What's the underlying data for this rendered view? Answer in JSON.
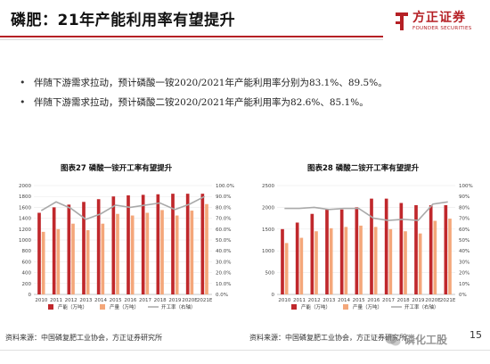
{
  "header": {
    "title": "磷肥：21年产能利用率有望提升",
    "logo_text": "方正证券",
    "logo_sub": "FOUNDER SECURITIES"
  },
  "bullets": [
    "伴随下游需求拉动，预计磷酸一铵2020/2021年产能利用率分别为83.1%、89.5%。",
    "伴随下游需求拉动，预计磷酸二铵2020/2021年产能利用率为82.6%、85.1%。"
  ],
  "colors": {
    "capacity": "#c0282c",
    "output": "#f4a77a",
    "rate": "#a9a9a9",
    "accent": "#b52025"
  },
  "chart_data": [
    {
      "type": "bar",
      "title": "图表27  磷酸一铵开工率有望提升",
      "categories": [
        "2010",
        "2011",
        "2012",
        "2013",
        "2014",
        "2015",
        "2016",
        "2017",
        "2018",
        "2019",
        "2020E",
        "2021E"
      ],
      "series": [
        {
          "name": "产能（万吨）",
          "type": "bar",
          "axis": "left",
          "values": [
            1500,
            1600,
            1650,
            1700,
            1750,
            1800,
            1820,
            1830,
            1840,
            1850,
            1850,
            1850
          ]
        },
        {
          "name": "产量（万吨）",
          "type": "bar",
          "axis": "left",
          "values": [
            1150,
            1200,
            1300,
            1180,
            1300,
            1480,
            1450,
            1500,
            1550,
            1450,
            1540,
            1660
          ]
        },
        {
          "name": "开工率（右轴）",
          "type": "line",
          "axis": "right",
          "values": [
            77,
            85,
            79,
            69,
            74,
            82,
            80,
            82,
            84,
            78,
            83,
            90
          ]
        }
      ],
      "ylim_left": [
        0,
        2000
      ],
      "yticks_left": [
        0,
        200,
        400,
        600,
        800,
        1000,
        1200,
        1400,
        1600,
        1800,
        2000
      ],
      "ylim_right": [
        0,
        100
      ],
      "yticks_right_labels": [
        "0.0%",
        "10.0%",
        "20.0%",
        "30.0%",
        "40.0%",
        "50.0%",
        "60.0%",
        "70.0%",
        "80.0%",
        "90.0%",
        "100.0%"
      ],
      "legend_position": "bottom",
      "source": "资料来源：中国磷复肥工业协会，方正证券研究所"
    },
    {
      "type": "bar",
      "title": "图表28  磷酸二铵开工率有望提升",
      "categories": [
        "2010",
        "2011",
        "2012",
        "2013",
        "2014",
        "2015",
        "2016",
        "2017",
        "2018",
        "2019",
        "2020E",
        "2021E"
      ],
      "series": [
        {
          "name": "产能（万吨）",
          "type": "bar",
          "axis": "left",
          "values": [
            1500,
            1650,
            1850,
            1950,
            1950,
            2000,
            2200,
            2200,
            2100,
            2050,
            2050,
            2050
          ]
        },
        {
          "name": "产量（万吨）",
          "type": "bar",
          "axis": "left",
          "values": [
            1180,
            1300,
            1450,
            1520,
            1550,
            1580,
            1550,
            1500,
            1450,
            1400,
            1690,
            1740
          ]
        },
        {
          "name": "开工率（右轴）",
          "type": "line",
          "axis": "right",
          "values": [
            79,
            79,
            80,
            78,
            79,
            79,
            70,
            68,
            69,
            68,
            83,
            85
          ]
        }
      ],
      "ylim_left": [
        0,
        2500
      ],
      "yticks_left": [
        0,
        500,
        1000,
        1500,
        2000,
        2500
      ],
      "ylim_right": [
        0,
        100
      ],
      "yticks_right_labels": [
        "0%",
        "10%",
        "20%",
        "30%",
        "40%",
        "50%",
        "60%",
        "70%",
        "80%",
        "90%",
        "100%"
      ],
      "legend_position": "bottom",
      "source": "资料来源：中国磷复肥工业协会，方正证券研究所"
    }
  ],
  "footer": {
    "source_left": "资料来源：中国磷复肥工业协会，方正证券研究所",
    "source_right": "资料来源：中国磷复肥工业协会，方正证券研究所",
    "page": "15",
    "watermark": "磷化工股"
  }
}
